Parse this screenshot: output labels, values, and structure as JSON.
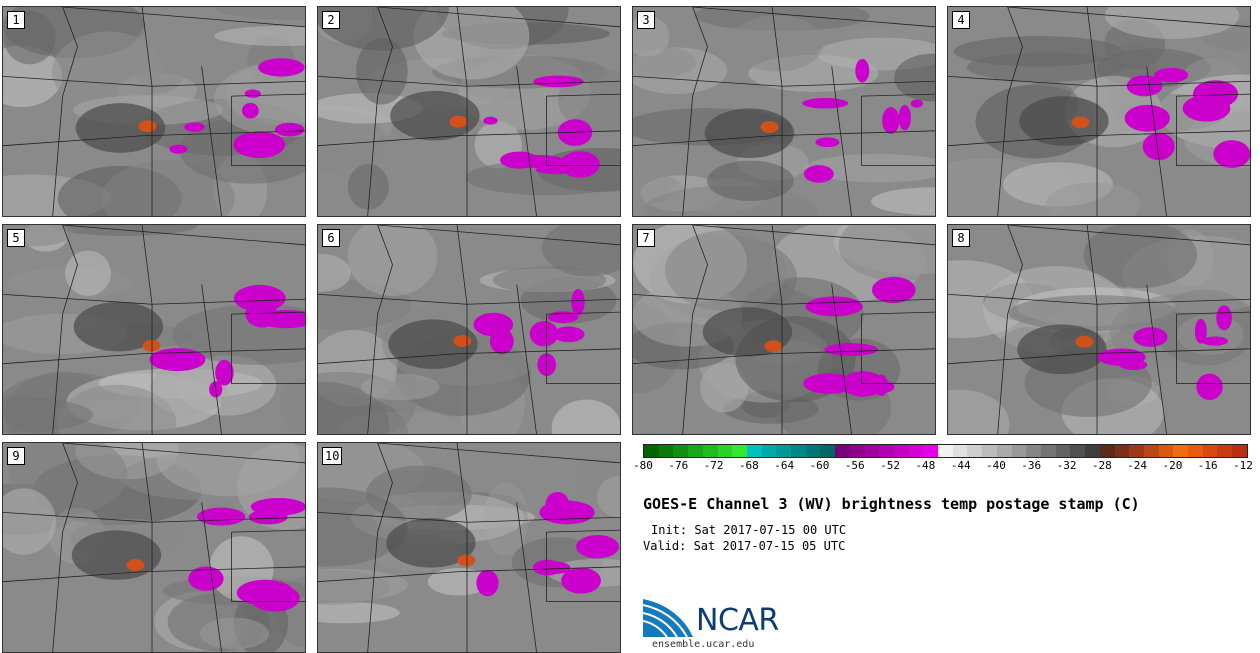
{
  "panels": [
    {
      "label": "1"
    },
    {
      "label": "2"
    },
    {
      "label": "3"
    },
    {
      "label": "4"
    },
    {
      "label": "5"
    },
    {
      "label": "6"
    },
    {
      "label": "7"
    },
    {
      "label": "8"
    },
    {
      "label": "9"
    },
    {
      "label": "10"
    }
  ],
  "colorbar": {
    "colors": [
      "#006400",
      "#0a7a0a",
      "#129012",
      "#1aa61a",
      "#22bc22",
      "#2ad22a",
      "#33e833",
      "#00c0c0",
      "#00aaaa",
      "#009999",
      "#008888",
      "#007777",
      "#006666",
      "#7a007a",
      "#8c008c",
      "#9e009e",
      "#b000b0",
      "#c200c2",
      "#d400d4",
      "#e600e6",
      "#f2f2f2",
      "#e0e0e0",
      "#cecece",
      "#bcbcbc",
      "#aaaaaa",
      "#989898",
      "#868686",
      "#747474",
      "#626262",
      "#505050",
      "#3e3e3e",
      "#5a2a1a",
      "#7a3018",
      "#9a3a16",
      "#ba4814",
      "#d85a10",
      "#f06c0c",
      "#e85a10",
      "#d84810",
      "#c83a10",
      "#b83010"
    ],
    "ticks": [
      "-80",
      "-76",
      "-72",
      "-68",
      "-64",
      "-60",
      "-56",
      "-52",
      "-48",
      "-44",
      "-40",
      "-36",
      "-32",
      "-28",
      "-24",
      "-20",
      "-16",
      "-12"
    ]
  },
  "title": "GOES-E Channel 3 (WV) brightness temp postage stamp (C)",
  "init": "Init: Sat 2017-07-15 00 UTC",
  "valid": "Valid: Sat 2017-07-15 05 UTC",
  "logo": {
    "text": "NCAR",
    "url": "ensemble.ucar.edu"
  }
}
